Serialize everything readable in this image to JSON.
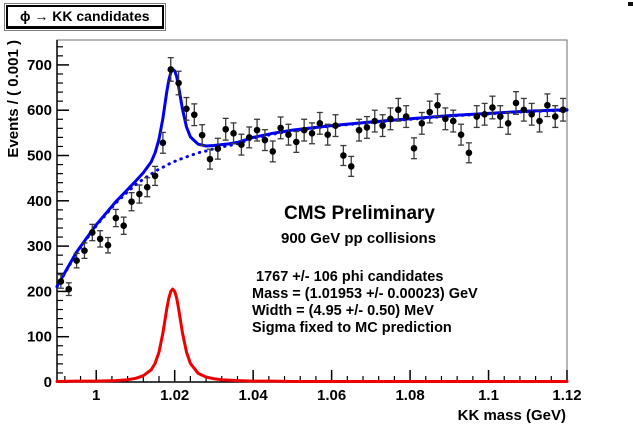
{
  "title_box": {
    "text": "ϕ → KK candidates"
  },
  "axes": {
    "x": {
      "label": "KK mass (GeV)",
      "min": 0.99,
      "max": 1.12,
      "major_ticks": [
        1.0,
        1.02,
        1.04,
        1.06,
        1.08,
        1.1,
        1.12
      ],
      "tick_labels": [
        "1",
        "1.02",
        "1.04",
        "1.06",
        "1.08",
        "1.1",
        "1.12"
      ],
      "minor_step": 0.004
    },
    "y": {
      "label": "Events / ( 0.001 )",
      "min": 0,
      "max": 755,
      "major_ticks": [
        0,
        100,
        200,
        300,
        400,
        500,
        600,
        700
      ],
      "tick_labels": [
        "0",
        "100",
        "200",
        "300",
        "400",
        "500",
        "600",
        "700"
      ],
      "minor_step": 20
    }
  },
  "annotations": {
    "experiment": "CMS Preliminary",
    "dataset": "900 GeV pp collisions",
    "stats_lines": [
      "1767 +/- 106  phi candidates",
      "Mass = (1.01953 +/- 0.00023) GeV",
      "Width = (4.95 +/- 0.50) MeV",
      "Sigma fixed to MC prediction"
    ]
  },
  "colors": {
    "fit_curve": "#0000ee",
    "background_curve": "#0000ee",
    "signal_curve": "#ee0000",
    "marker": "#000000",
    "error_bar": "#3a3a3a",
    "frame": "#6e6e6e",
    "axis": "#000000"
  },
  "chart_data": {
    "type": "scatter",
    "title": "ϕ → KK candidates",
    "xlabel": "KK mass (GeV)",
    "ylabel": "Events / ( 0.001 )",
    "xlim": [
      0.99,
      1.12
    ],
    "ylim": [
      0,
      755
    ],
    "grid": false,
    "legend": "none",
    "points": {
      "name": "KK candidates data",
      "x": [
        0.991,
        0.993,
        0.995,
        0.997,
        0.999,
        1.001,
        1.003,
        1.005,
        1.007,
        1.009,
        1.011,
        1.013,
        1.015,
        1.017,
        1.019,
        1.021,
        1.023,
        1.025,
        1.027,
        1.029,
        1.031,
        1.033,
        1.035,
        1.037,
        1.039,
        1.041,
        1.043,
        1.045,
        1.047,
        1.049,
        1.051,
        1.053,
        1.055,
        1.057,
        1.059,
        1.061,
        1.063,
        1.065,
        1.067,
        1.069,
        1.071,
        1.073,
        1.075,
        1.077,
        1.079,
        1.081,
        1.083,
        1.085,
        1.087,
        1.089,
        1.091,
        1.093,
        1.095,
        1.097,
        1.099,
        1.101,
        1.103,
        1.105,
        1.107,
        1.109,
        1.111,
        1.113,
        1.115,
        1.117,
        1.119
      ],
      "y": [
        222,
        205,
        268,
        290,
        330,
        316,
        302,
        362,
        345,
        398,
        415,
        430,
        455,
        528,
        690,
        660,
        603,
        590,
        545,
        492,
        515,
        558,
        549,
        524,
        540,
        556,
        534,
        509,
        561,
        546,
        530,
        556,
        549,
        571,
        546,
        566,
        500,
        476,
        556,
        562,
        576,
        566,
        581,
        601,
        586,
        516,
        571,
        596,
        611,
        581,
        576,
        546,
        506,
        586,
        591,
        606,
        586,
        571,
        616,
        601,
        591,
        576,
        611,
        586,
        601
      ],
      "yerr": [
        15,
        14,
        16,
        17,
        18,
        18,
        17,
        19,
        19,
        20,
        20,
        21,
        21,
        23,
        26,
        26,
        25,
        24,
        23,
        22,
        23,
        24,
        23,
        23,
        23,
        24,
        23,
        23,
        24,
        23,
        23,
        24,
        23,
        24,
        23,
        24,
        22,
        22,
        24,
        24,
        24,
        24,
        24,
        25,
        24,
        23,
        24,
        24,
        25,
        24,
        24,
        23,
        22,
        24,
        24,
        25,
        24,
        24,
        25,
        25,
        24,
        24,
        25,
        24,
        25
      ]
    },
    "curves": [
      {
        "name": "total-fit",
        "style": "solid",
        "color": "#0000ee",
        "width": 3,
        "x": [
          0.99,
          0.995,
          1.0,
          1.005,
          1.008,
          1.01,
          1.012,
          1.014,
          1.015,
          1.016,
          1.017,
          1.018,
          1.0185,
          1.019,
          1.0195,
          1.02,
          1.0205,
          1.021,
          1.022,
          1.023,
          1.024,
          1.025,
          1.026,
          1.028,
          1.03,
          1.032,
          1.034,
          1.036,
          1.04,
          1.045,
          1.05,
          1.06,
          1.07,
          1.08,
          1.09,
          1.1,
          1.11,
          1.12
        ],
        "y": [
          211,
          287,
          347,
          398,
          425,
          443,
          462,
          486,
          506,
          536,
          582,
          641,
          666,
          683,
          690,
          687,
          674,
          652,
          602,
          563,
          541,
          533,
          525,
          521,
          522,
          524,
          526,
          529,
          540,
          549,
          556,
          566,
          574,
          581,
          588,
          593,
          598,
          601
        ]
      },
      {
        "name": "background",
        "style": "dotted",
        "color": "#0000ee",
        "width": 3,
        "x": [
          0.99,
          0.995,
          1.0,
          1.005,
          1.008,
          1.01,
          1.012,
          1.014,
          1.015,
          1.016,
          1.017,
          1.018,
          1.0185,
          1.019,
          1.0195,
          1.02,
          1.0205,
          1.021,
          1.022,
          1.023,
          1.024,
          1.025,
          1.026,
          1.028,
          1.03,
          1.032,
          1.034,
          1.036,
          1.04,
          1.045,
          1.05,
          1.06,
          1.07,
          1.08,
          1.09,
          1.1,
          1.11,
          1.12
        ],
        "y": [
          210,
          285,
          345,
          395,
          420,
          435,
          448,
          459,
          465,
          470,
          474,
          479,
          481,
          483,
          485,
          487,
          489,
          490,
          494,
          497,
          500,
          503,
          506,
          510,
          515,
          519,
          522,
          526,
          538,
          547,
          555,
          565,
          573,
          580,
          587,
          592,
          597,
          600
        ]
      },
      {
        "name": "signal",
        "style": "solid",
        "color": "#ee0000",
        "width": 3,
        "x": [
          0.99,
          0.995,
          1.0,
          1.005,
          1.008,
          1.01,
          1.012,
          1.014,
          1.015,
          1.016,
          1.017,
          1.018,
          1.0185,
          1.019,
          1.0195,
          1.02,
          1.0205,
          1.021,
          1.022,
          1.023,
          1.024,
          1.025,
          1.026,
          1.028,
          1.03,
          1.032,
          1.034,
          1.036,
          1.04,
          1.045,
          1.05,
          1.06,
          1.07,
          1.08,
          1.09,
          1.1,
          1.11,
          1.12
        ],
        "y": [
          1,
          2,
          2,
          3,
          5,
          8,
          14,
          27,
          41,
          66,
          108,
          162,
          185,
          200,
          205,
          200,
          185,
          162,
          108,
          66,
          41,
          30,
          19,
          11,
          7,
          5,
          4,
          3,
          2,
          2,
          1,
          1,
          1,
          1,
          1,
          1,
          1,
          1
        ]
      }
    ]
  }
}
